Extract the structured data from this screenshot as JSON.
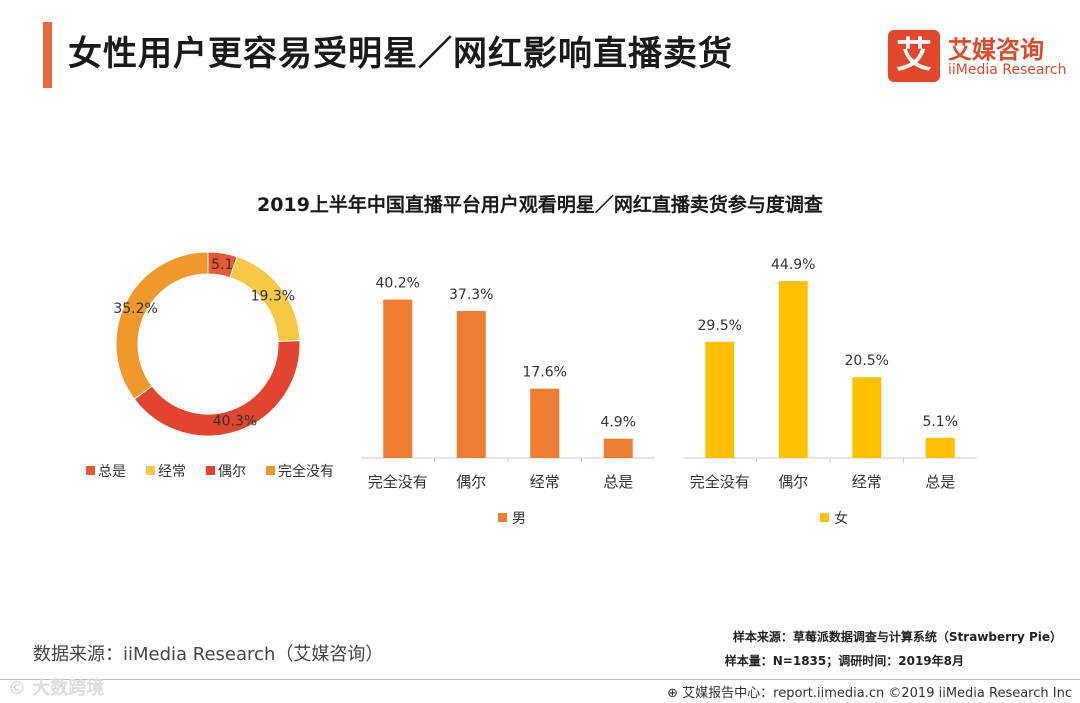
{
  "header": {
    "title": "女性用户更容易受明星／网红影响直播卖货"
  },
  "logo": {
    "mark": "艾",
    "name_cn": "艾媒咨询",
    "name_en": "iiMedia Research"
  },
  "colors": {
    "accent": "#e8693a",
    "brand": "#e2472c",
    "always": "#e85a35",
    "often": "#f7c843",
    "sometimes": "#e2452f",
    "never": "#f0982c",
    "male": "#ed7d31",
    "female": "#ffc000",
    "axis": "#cccccc"
  },
  "chart_data": [
    {
      "type": "pie",
      "style": "donut",
      "title": "2019上半年中国直播平台用户观看明星／网红直播卖货参与度调查",
      "categories": [
        "总是",
        "经常",
        "偶尔",
        "完全没有"
      ],
      "values": [
        5.1,
        19.3,
        40.3,
        35.2
      ],
      "labels": [
        "5.1%",
        "19.3%",
        "40.3%",
        "35.2%"
      ],
      "legend_position": "bottom"
    },
    {
      "type": "bar",
      "series_name": "男",
      "categories": [
        "完全没有",
        "偶尔",
        "经常",
        "总是"
      ],
      "values": [
        40.2,
        37.3,
        17.6,
        4.9
      ],
      "labels": [
        "40.2%",
        "37.3%",
        "17.6%",
        "4.9%"
      ],
      "ylim": [
        0,
        50
      ],
      "legend_position": "bottom"
    },
    {
      "type": "bar",
      "series_name": "女",
      "categories": [
        "完全没有",
        "偶尔",
        "经常",
        "总是"
      ],
      "values": [
        29.5,
        44.9,
        20.5,
        5.1
      ],
      "labels": [
        "29.5%",
        "44.9%",
        "20.5%",
        "5.1%"
      ],
      "ylim": [
        0,
        50
      ],
      "legend_position": "bottom"
    }
  ],
  "footer": {
    "data_source": "数据来源：iiMedia Research（艾媒咨询）",
    "sample_source": "样本来源：草莓派数据调查与计算系统（Strawberry Pie）",
    "sample_size": "样本量：N=1835；调研时间：2019年8月",
    "report_center": "⊕ 艾媒报告中心：report.iimedia.cn ©2019 iiMedia Research Inc",
    "watermark": "© 大数跨境"
  }
}
